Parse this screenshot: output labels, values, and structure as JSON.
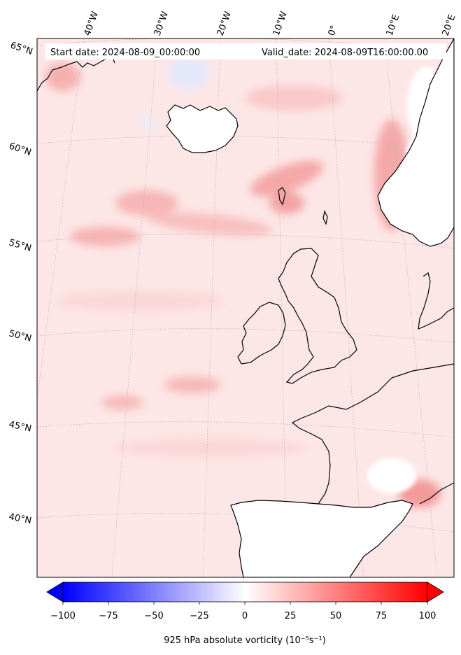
{
  "header": {
    "start_date": "Start date: 2024-08-09_00:00:00",
    "valid_date": "Valid_date: 2024-08-09T16:00:00.00"
  },
  "map": {
    "longitude_labels": [
      "40°W",
      "30°W",
      "20°W",
      "10°W",
      "0°",
      "10°E",
      "20°E"
    ],
    "latitude_labels": [
      "65°N",
      "60°N",
      "55°N",
      "50°N",
      "45°N",
      "40°N"
    ],
    "background_color": "#fde7e7",
    "coastline_color": "#000000"
  },
  "colorbar": {
    "ticks": [
      "−100",
      "−75",
      "−50",
      "−25",
      "0",
      "25",
      "50",
      "75",
      "100"
    ],
    "label": "925 hPa absolute vorticity (10⁻⁵s⁻¹)",
    "min_color": "#0000ff",
    "mid_color": "#ffffff",
    "max_color": "#ff0000"
  }
}
